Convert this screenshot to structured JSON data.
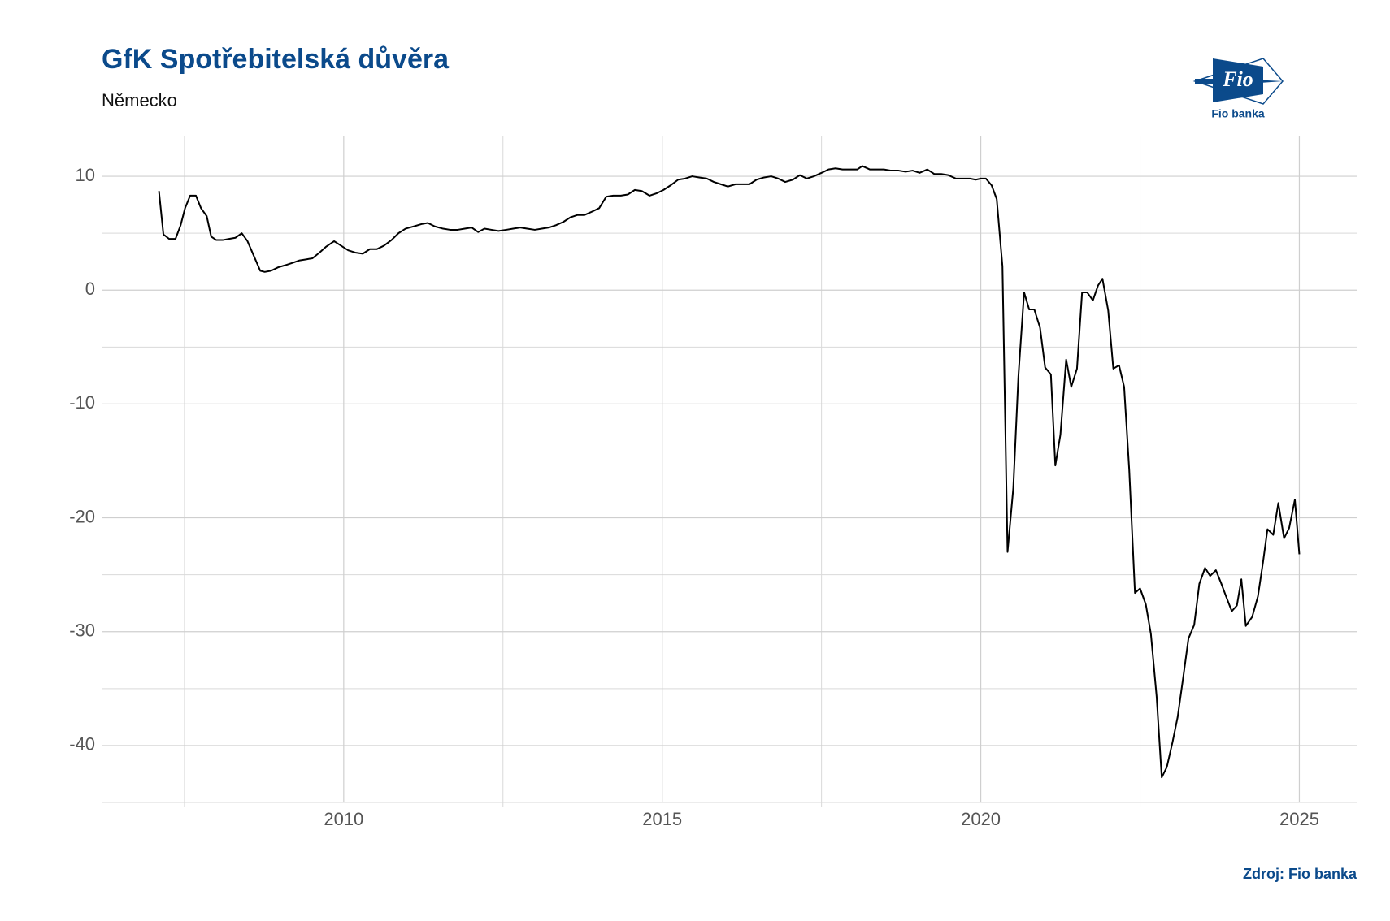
{
  "chart_data": {
    "type": "line",
    "title": "GfK Spotřebitelská důvěra",
    "subtitle": "Německo",
    "source": "Zdroj: Fio banka",
    "logo_text": "Fio",
    "logo_caption": "Fio banka",
    "color": "#000000",
    "grid": true,
    "xlim": [
      2006.2,
      2025.9
    ],
    "xticks": [
      2010,
      2015,
      2020,
      2025
    ],
    "xminorticks": [
      2007.5,
      2012.5,
      2017.5,
      2022.5
    ],
    "ylim": [
      -45,
      13.5
    ],
    "yticks": [
      -40,
      -30,
      -20,
      -10,
      0,
      10
    ],
    "yminorticks": [
      -45,
      -35,
      -25,
      -15,
      -5,
      5
    ],
    "x": [
      2007.1,
      2007.17,
      2007.26,
      2007.36,
      2007.44,
      2007.51,
      2007.59,
      2007.68,
      2007.76,
      2007.85,
      2007.92,
      2008.0,
      2008.1,
      2008.2,
      2008.3,
      2008.4,
      2008.49,
      2008.59,
      2008.69,
      2008.76,
      2008.86,
      2008.97,
      2009.09,
      2009.2,
      2009.3,
      2009.41,
      2009.51,
      2009.62,
      2009.72,
      2009.85,
      2009.96,
      2010.07,
      2010.18,
      2010.3,
      2010.41,
      2010.52,
      2010.63,
      2010.75,
      2010.86,
      2010.97,
      2011.1,
      2011.22,
      2011.32,
      2011.43,
      2011.56,
      2011.67,
      2011.79,
      2011.9,
      2012.01,
      2012.11,
      2012.21,
      2012.32,
      2012.43,
      2012.55,
      2012.66,
      2012.77,
      2012.88,
      2013.0,
      2013.11,
      2013.22,
      2013.33,
      2013.45,
      2013.56,
      2013.67,
      2013.78,
      2013.9,
      2014.01,
      2014.12,
      2014.23,
      2014.35,
      2014.46,
      2014.57,
      2014.68,
      2014.8,
      2014.91,
      2015.02,
      2015.13,
      2015.25,
      2015.36,
      2015.47,
      2015.58,
      2015.7,
      2015.81,
      2015.92,
      2016.03,
      2016.15,
      2016.26,
      2016.37,
      2016.48,
      2016.6,
      2016.71,
      2016.82,
      2016.93,
      2017.05,
      2017.16,
      2017.27,
      2017.38,
      2017.5,
      2017.61,
      2017.72,
      2017.83,
      2017.95,
      2018.06,
      2018.14,
      2018.26,
      2018.37,
      2018.48,
      2018.59,
      2018.71,
      2018.82,
      2018.93,
      2019.04,
      2019.16,
      2019.27,
      2019.38,
      2019.49,
      2019.61,
      2019.72,
      2019.83,
      2019.92,
      2020.0,
      2020.08,
      2020.17,
      2020.25,
      2020.34,
      2020.42,
      2020.51,
      2020.59,
      2020.68,
      2020.76,
      2020.84,
      2020.93,
      2021.01,
      2021.1,
      2021.17,
      2021.25,
      2021.34,
      2021.42,
      2021.51,
      2021.59,
      2021.67,
      2021.76,
      2021.84,
      2021.91,
      2022.0,
      2022.08,
      2022.17,
      2022.25,
      2022.33,
      2022.42,
      2022.5,
      2022.59,
      2022.67,
      2022.76,
      2022.84,
      2022.92,
      2023.01,
      2023.09,
      2023.18,
      2023.26,
      2023.35,
      2023.43,
      2023.52,
      2023.6,
      2023.69,
      2023.77,
      2023.85,
      2023.94,
      2024.02,
      2024.09,
      2024.16,
      2024.26,
      2024.35,
      2024.43,
      2024.5,
      2024.59,
      2024.67,
      2024.76,
      2024.84,
      2024.93,
      2025.0
    ],
    "values": [
      8.7,
      4.9,
      4.5,
      4.5,
      5.7,
      7.2,
      8.3,
      8.3,
      7.2,
      6.5,
      4.7,
      4.4,
      4.4,
      4.5,
      4.6,
      5.0,
      4.3,
      3.0,
      1.7,
      1.6,
      1.7,
      2.0,
      2.2,
      2.4,
      2.6,
      2.7,
      2.8,
      3.3,
      3.8,
      4.3,
      3.9,
      3.5,
      3.3,
      3.2,
      3.6,
      3.6,
      3.9,
      4.4,
      5.0,
      5.4,
      5.6,
      5.8,
      5.9,
      5.6,
      5.4,
      5.3,
      5.3,
      5.4,
      5.5,
      5.1,
      5.4,
      5.3,
      5.2,
      5.3,
      5.4,
      5.5,
      5.4,
      5.3,
      5.4,
      5.5,
      5.7,
      6.0,
      6.4,
      6.6,
      6.6,
      6.9,
      7.2,
      8.2,
      8.3,
      8.3,
      8.4,
      8.8,
      8.7,
      8.3,
      8.5,
      8.8,
      9.2,
      9.7,
      9.8,
      10.0,
      9.9,
      9.8,
      9.5,
      9.3,
      9.1,
      9.3,
      9.3,
      9.3,
      9.7,
      9.9,
      10.0,
      9.8,
      9.5,
      9.7,
      10.1,
      9.8,
      10.0,
      10.3,
      10.6,
      10.7,
      10.6,
      10.6,
      10.6,
      10.9,
      10.6,
      10.6,
      10.6,
      10.5,
      10.5,
      10.4,
      10.5,
      10.3,
      10.6,
      10.2,
      10.2,
      10.1,
      9.8,
      9.8,
      9.8,
      9.7,
      9.8,
      9.8,
      9.2,
      8.0,
      2.1,
      -23.0,
      -17.4,
      -7.6,
      -0.2,
      -1.7,
      -1.7,
      -3.3,
      -6.8,
      -7.4,
      -15.4,
      -12.7,
      -6.1,
      -8.5,
      -6.9,
      -0.2,
      -0.2,
      -0.9,
      0.4,
      1.0,
      -1.8,
      -6.9,
      -6.6,
      -8.5,
      -15.8,
      -26.6,
      -26.2,
      -27.6,
      -30.2,
      -35.7,
      -42.8,
      -41.9,
      -39.7,
      -37.5,
      -33.9,
      -30.6,
      -29.4,
      -25.8,
      -24.4,
      -25.1,
      -24.6,
      -25.7,
      -26.9,
      -28.2,
      -27.7,
      -25.4,
      -29.5,
      -28.7,
      -26.9,
      -23.9,
      -21.0,
      -21.5,
      -18.7,
      -21.8,
      -20.9,
      -18.4,
      -23.2
    ]
  }
}
